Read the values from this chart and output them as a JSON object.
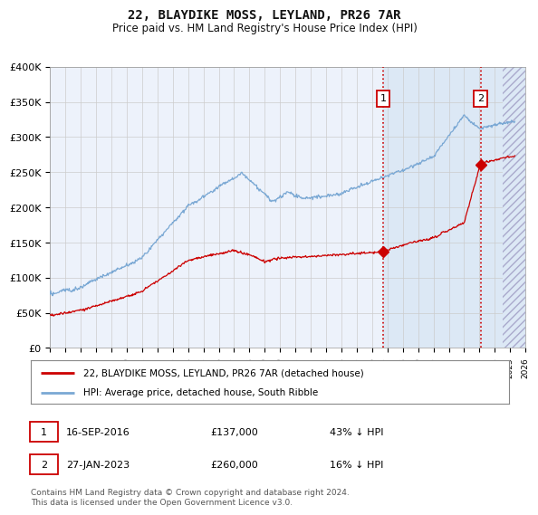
{
  "title": "22, BLAYDIKE MOSS, LEYLAND, PR26 7AR",
  "subtitle": "Price paid vs. HM Land Registry's House Price Index (HPI)",
  "ylim": [
    0,
    400000
  ],
  "yticks": [
    0,
    50000,
    100000,
    150000,
    200000,
    250000,
    300000,
    350000,
    400000
  ],
  "ytick_labels": [
    "£0",
    "£50K",
    "£100K",
    "£150K",
    "£200K",
    "£250K",
    "£300K",
    "£350K",
    "£400K"
  ],
  "hpi_color": "#7aa8d4",
  "price_color": "#cc0000",
  "marker1_date_x": 2016.71,
  "marker1_price": 137000,
  "marker2_date_x": 2023.07,
  "marker2_price": 260000,
  "legend_price_label": "22, BLAYDIKE MOSS, LEYLAND, PR26 7AR (detached house)",
  "legend_hpi_label": "HPI: Average price, detached house, South Ribble",
  "table_rows": [
    [
      "1",
      "16-SEP-2016",
      "£137,000",
      "43% ↓ HPI"
    ],
    [
      "2",
      "27-JAN-2023",
      "£260,000",
      "16% ↓ HPI"
    ]
  ],
  "footer": "Contains HM Land Registry data © Crown copyright and database right 2024.\nThis data is licensed under the Open Government Licence v3.0.",
  "bg_color": "#ffffff",
  "plot_bg_color": "#edf2fb",
  "shade_color": "#dce8f5",
  "grid_color": "#cccccc",
  "xmin": 1995,
  "xmax": 2026,
  "hatch_start": 2024.5
}
